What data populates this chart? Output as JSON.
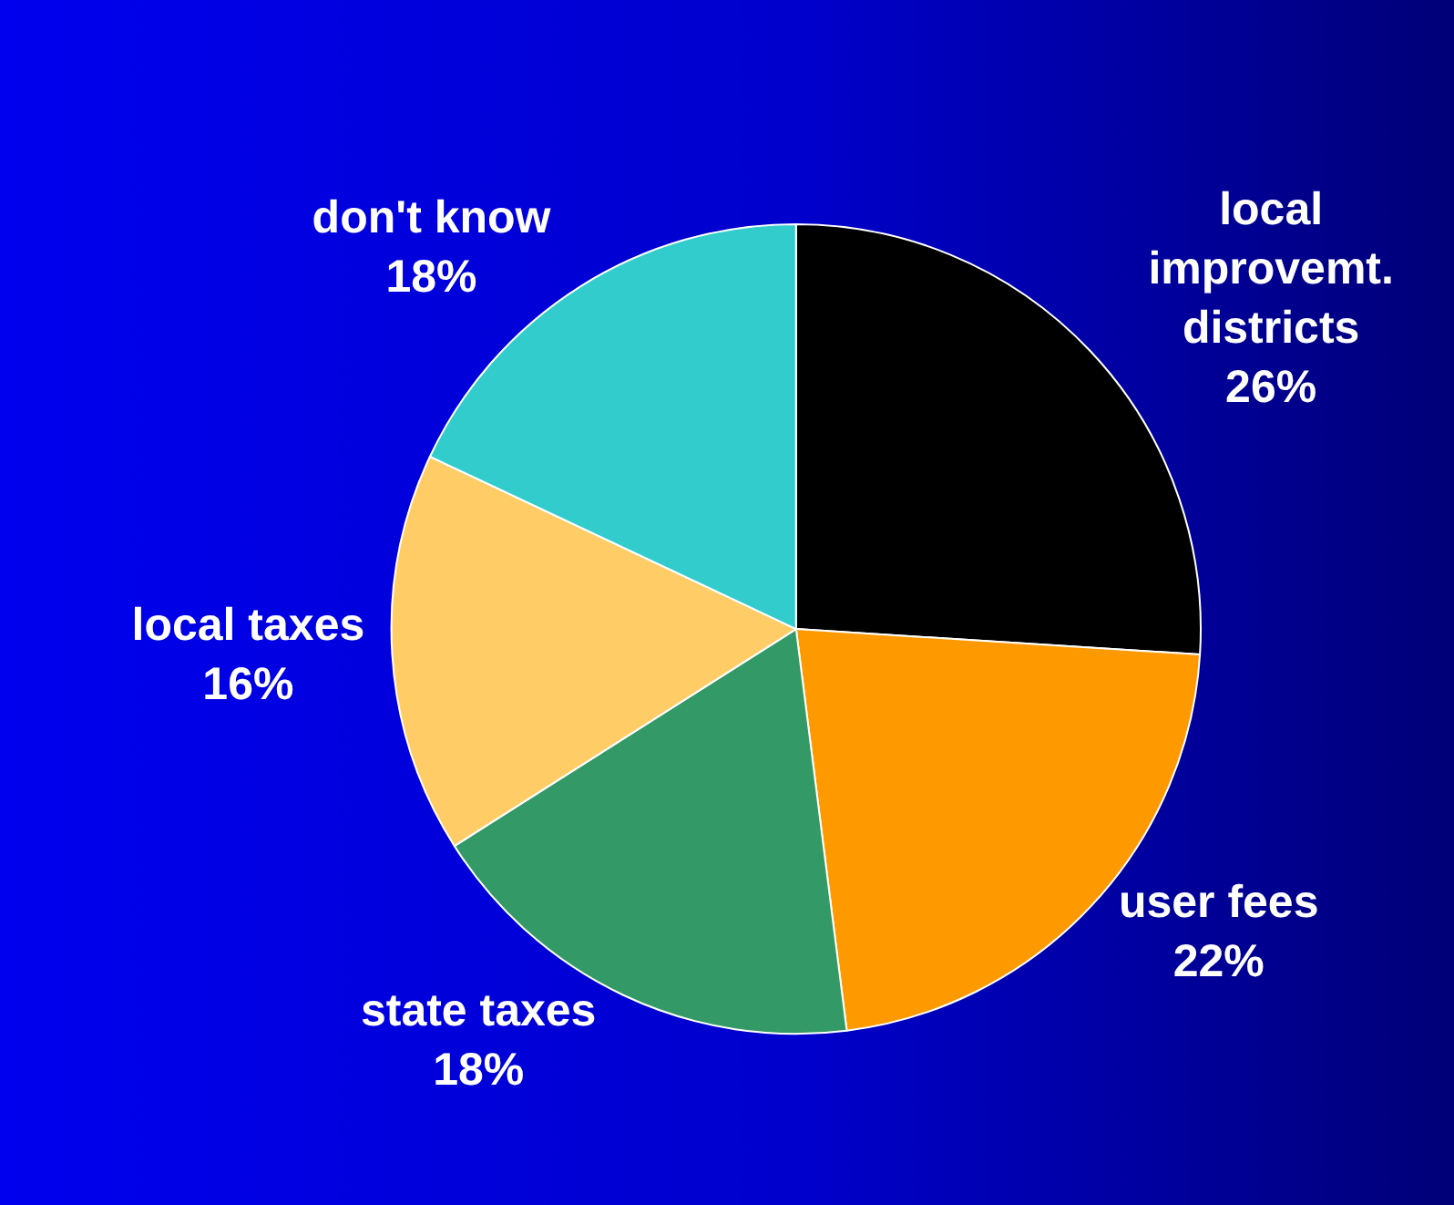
{
  "chart_data": {
    "type": "pie",
    "categories": [
      "local improvemt. districts",
      "user fees",
      "state taxes",
      "local taxes",
      "don't know"
    ],
    "values": [
      26,
      22,
      18,
      16,
      18
    ],
    "value_labels": [
      "26%",
      "22%",
      "18%",
      "16%",
      "18%"
    ],
    "colors": [
      "#000000",
      "#ff9900",
      "#339966",
      "#ffcc66",
      "#33cccc"
    ],
    "legend": false
  }
}
